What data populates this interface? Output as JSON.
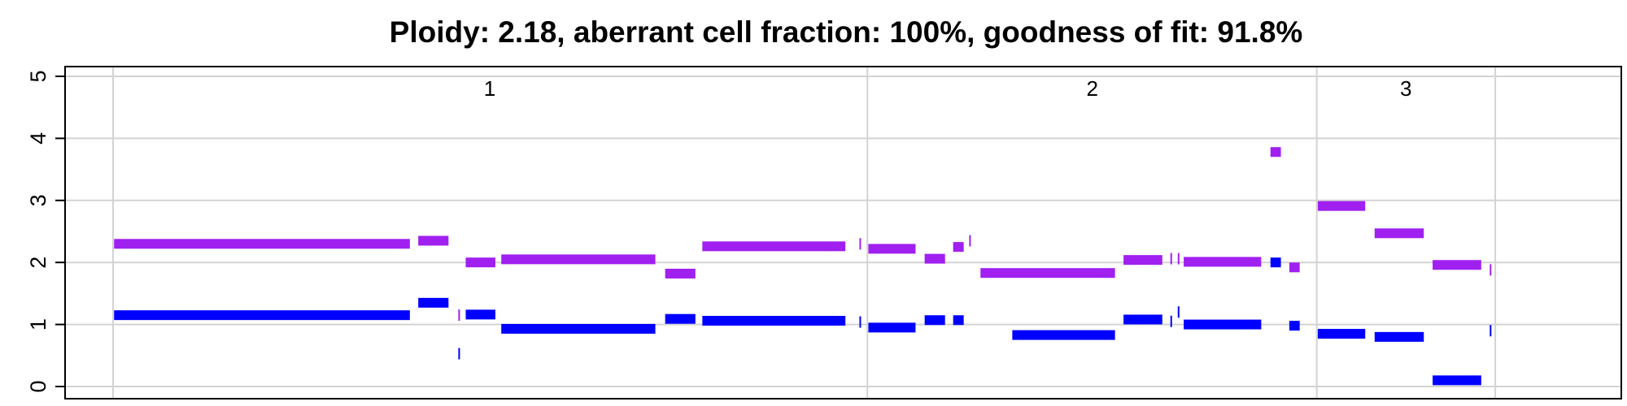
{
  "chart_data": {
    "type": "segments",
    "title": "Ploidy: 2.18, aberrant cell fraction: 100%, goodness of fit: 91.8%",
    "xlabel": "",
    "ylabel": "",
    "ylim": [
      0,
      5
    ],
    "yticks": [
      0,
      1,
      2,
      3,
      4,
      5
    ],
    "ytick_labels": [
      "0",
      "1",
      "2",
      "3",
      "4",
      "5"
    ],
    "xlim": [
      0,
      1.0
    ],
    "grid": true,
    "chromosome_boundaries": [
      0.0,
      0.5215,
      0.8322,
      0.9556
    ],
    "chromosomes": [
      {
        "label": "1",
        "center": 0.2604
      },
      {
        "label": "2",
        "center": 0.677
      },
      {
        "label": "3",
        "center": 0.8938
      }
    ],
    "colors": {
      "total": "#a020f0",
      "minor": "#0000ff",
      "grid": "#d3d3d3"
    },
    "series": [
      {
        "key": "total",
        "color": "#a020f0",
        "segments": [
          {
            "start": 0.0007,
            "end": 0.2052,
            "value": 2.3
          },
          {
            "start": 0.211,
            "end": 0.2319,
            "value": 2.35
          },
          {
            "start": 0.2387,
            "end": 0.2392,
            "value": 1.15
          },
          {
            "start": 0.2438,
            "end": 0.2643,
            "value": 2.0
          },
          {
            "start": 0.2684,
            "end": 0.3749,
            "value": 2.05
          },
          {
            "start": 0.3817,
            "end": 0.4026,
            "value": 1.82
          },
          {
            "start": 0.4074,
            "end": 0.5063,
            "value": 2.26
          },
          {
            "start": 0.516,
            "end": 0.5165,
            "value": 2.3
          },
          {
            "start": 0.5222,
            "end": 0.5548,
            "value": 2.22
          },
          {
            "start": 0.5611,
            "end": 0.5752,
            "value": 2.06
          },
          {
            "start": 0.5808,
            "end": 0.5881,
            "value": 2.25
          },
          {
            "start": 0.5919,
            "end": 0.5924,
            "value": 2.35
          },
          {
            "start": 0.5997,
            "end": 0.6927,
            "value": 1.83
          },
          {
            "start": 0.6986,
            "end": 0.7254,
            "value": 2.04
          },
          {
            "start": 0.731,
            "end": 0.7315,
            "value": 2.06
          },
          {
            "start": 0.7361,
            "end": 0.7366,
            "value": 2.06
          },
          {
            "start": 0.7402,
            "end": 0.7938,
            "value": 2.01
          },
          {
            "start": 0.8002,
            "end": 0.8074,
            "value": 3.78
          },
          {
            "start": 0.8132,
            "end": 0.8204,
            "value": 1.92
          },
          {
            "start": 0.8329,
            "end": 0.8657,
            "value": 2.91
          },
          {
            "start": 0.8722,
            "end": 0.9062,
            "value": 2.47
          },
          {
            "start": 0.9123,
            "end": 0.9459,
            "value": 1.96
          },
          {
            "start": 0.9518,
            "end": 0.9523,
            "value": 1.88
          }
        ]
      },
      {
        "key": "minor",
        "color": "#0000ff",
        "segments": [
          {
            "start": 0.0007,
            "end": 0.2052,
            "value": 1.15
          },
          {
            "start": 0.211,
            "end": 0.2319,
            "value": 1.35
          },
          {
            "start": 0.2387,
            "end": 0.2392,
            "value": 0.53
          },
          {
            "start": 0.2438,
            "end": 0.2643,
            "value": 1.16
          },
          {
            "start": 0.2684,
            "end": 0.3749,
            "value": 0.93
          },
          {
            "start": 0.3817,
            "end": 0.4026,
            "value": 1.09
          },
          {
            "start": 0.4074,
            "end": 0.5063,
            "value": 1.06
          },
          {
            "start": 0.516,
            "end": 0.5165,
            "value": 1.04
          },
          {
            "start": 0.5222,
            "end": 0.5548,
            "value": 0.95
          },
          {
            "start": 0.5611,
            "end": 0.5752,
            "value": 1.07
          },
          {
            "start": 0.5808,
            "end": 0.5881,
            "value": 1.07
          },
          {
            "start": 0.6217,
            "end": 0.6927,
            "value": 0.83
          },
          {
            "start": 0.6986,
            "end": 0.7254,
            "value": 1.08
          },
          {
            "start": 0.731,
            "end": 0.7315,
            "value": 1.05
          },
          {
            "start": 0.7361,
            "end": 0.7366,
            "value": 1.2
          },
          {
            "start": 0.7402,
            "end": 0.7938,
            "value": 1.0
          },
          {
            "start": 0.8002,
            "end": 0.8074,
            "value": 2.0
          },
          {
            "start": 0.8132,
            "end": 0.8204,
            "value": 0.98
          },
          {
            "start": 0.8329,
            "end": 0.8657,
            "value": 0.85
          },
          {
            "start": 0.8722,
            "end": 0.9062,
            "value": 0.8
          },
          {
            "start": 0.9123,
            "end": 0.9459,
            "value": 0.1
          },
          {
            "start": 0.9518,
            "end": 0.9523,
            "value": 0.9
          }
        ]
      }
    ]
  }
}
